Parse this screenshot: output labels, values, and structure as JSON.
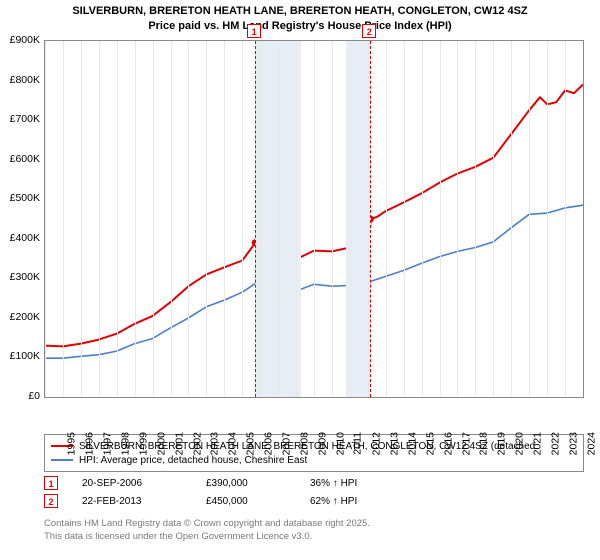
{
  "title_line1": "SILVERBURN, BRERETON HEATH LANE, BRERETON HEATH, CONGLETON, CW12 4SZ",
  "title_line2": "Price paid vs. HM Land Registry's House Price Index (HPI)",
  "chart": {
    "type": "line",
    "background_color": "#ffffff",
    "grid_color": "#e8e8e8",
    "border_color": "#888888",
    "x_range": [
      1995,
      2025
    ],
    "y_range": [
      0,
      900000
    ],
    "y_ticks": [
      0,
      100000,
      200000,
      300000,
      400000,
      500000,
      600000,
      700000,
      800000,
      900000
    ],
    "y_tick_labels": [
      "£0",
      "£100K",
      "£200K",
      "£300K",
      "£400K",
      "£500K",
      "£600K",
      "£700K",
      "£800K",
      "£900K"
    ],
    "y_label_fontsize": 10.5,
    "x_ticks": [
      1995,
      1996,
      1997,
      1998,
      1999,
      2000,
      2001,
      2002,
      2003,
      2004,
      2005,
      2006,
      2007,
      2008,
      2009,
      2010,
      2011,
      2012,
      2013,
      2014,
      2015,
      2016,
      2017,
      2018,
      2019,
      2020,
      2021,
      2022,
      2023,
      2024
    ],
    "x_label_fontsize": 10.5,
    "x_label_rotation": -90,
    "shaded_bands": [
      {
        "from": 2006.7,
        "to": 2009.3,
        "color": "#e6edf5"
      },
      {
        "from": 2011.8,
        "to": 2013.2,
        "color": "#e6edf5"
      }
    ],
    "markers": [
      {
        "id": "1",
        "x": 2006.72,
        "y": 390000
      },
      {
        "id": "2",
        "x": 2013.14,
        "y": 450000
      }
    ],
    "marker_line_color": "#e00000",
    "marker_box_border": "#e00000",
    "series": [
      {
        "name": "SILVERBURN, BRERETON HEATH LANE, BRERETON HEATH, CONGLETON, CW12 4SZ (detached",
        "color": "#e00000",
        "width": 2.0,
        "points": [
          [
            1995,
            130000
          ],
          [
            1996,
            128000
          ],
          [
            1997,
            135000
          ],
          [
            1998,
            145000
          ],
          [
            1999,
            160000
          ],
          [
            2000,
            185000
          ],
          [
            2001,
            205000
          ],
          [
            2002,
            240000
          ],
          [
            2003,
            280000
          ],
          [
            2004,
            310000
          ],
          [
            2005,
            328000
          ],
          [
            2006,
            345000
          ],
          [
            2006.7,
            388000
          ],
          [
            2007,
            395000
          ],
          [
            2007.4,
            398000
          ],
          [
            2008,
            360000
          ],
          [
            2008.5,
            345000
          ],
          [
            2009,
            348000
          ],
          [
            2010,
            370000
          ],
          [
            2011,
            368000
          ],
          [
            2012,
            378000
          ],
          [
            2012.7,
            385000
          ],
          [
            2013.1,
            395000
          ],
          [
            2013.15,
            450000
          ],
          [
            2013.5,
            455000
          ],
          [
            2014,
            470000
          ],
          [
            2015,
            492000
          ],
          [
            2016,
            515000
          ],
          [
            2017,
            542000
          ],
          [
            2018,
            565000
          ],
          [
            2019,
            582000
          ],
          [
            2020,
            605000
          ],
          [
            2021,
            665000
          ],
          [
            2022,
            725000
          ],
          [
            2022.6,
            758000
          ],
          [
            2023,
            740000
          ],
          [
            2023.5,
            745000
          ],
          [
            2024,
            775000
          ],
          [
            2024.5,
            768000
          ],
          [
            2025,
            790000
          ]
        ]
      },
      {
        "name": "HPI: Average price, detached house, Cheshire East",
        "color": "#4a7ec8",
        "width": 1.6,
        "points": [
          [
            1995,
            98000
          ],
          [
            1996,
            98000
          ],
          [
            1997,
            103000
          ],
          [
            1998,
            107000
          ],
          [
            1999,
            116000
          ],
          [
            2000,
            135000
          ],
          [
            2001,
            148000
          ],
          [
            2002,
            175000
          ],
          [
            2003,
            200000
          ],
          [
            2004,
            228000
          ],
          [
            2005,
            245000
          ],
          [
            2006,
            265000
          ],
          [
            2007,
            295000
          ],
          [
            2007.5,
            302000
          ],
          [
            2008,
            280000
          ],
          [
            2008.7,
            262000
          ],
          [
            2009,
            268000
          ],
          [
            2010,
            285000
          ],
          [
            2011,
            280000
          ],
          [
            2012,
            282000
          ],
          [
            2013,
            290000
          ],
          [
            2014,
            305000
          ],
          [
            2015,
            320000
          ],
          [
            2016,
            338000
          ],
          [
            2017,
            355000
          ],
          [
            2018,
            368000
          ],
          [
            2019,
            378000
          ],
          [
            2020,
            392000
          ],
          [
            2021,
            428000
          ],
          [
            2022,
            462000
          ],
          [
            2023,
            465000
          ],
          [
            2024,
            478000
          ],
          [
            2025,
            485000
          ]
        ]
      }
    ]
  },
  "legend": {
    "items": [
      {
        "color": "#e00000",
        "label": "SILVERBURN, BRERETON HEATH LANE, BRERETON HEATH, CONGLETON, CW12 4SZ (detached"
      },
      {
        "color": "#4a7ec8",
        "label": "HPI: Average price, detached house, Cheshire East"
      }
    ]
  },
  "events": [
    {
      "id": "1",
      "date": "20-SEP-2006",
      "price": "£390,000",
      "delta": "36% ↑ HPI"
    },
    {
      "id": "2",
      "date": "22-FEB-2013",
      "price": "£450,000",
      "delta": "62% ↑ HPI"
    }
  ],
  "footer_line1": "Contains HM Land Registry data © Crown copyright and database right 2025.",
  "footer_line2": "This data is licensed under the Open Government Licence v3.0."
}
